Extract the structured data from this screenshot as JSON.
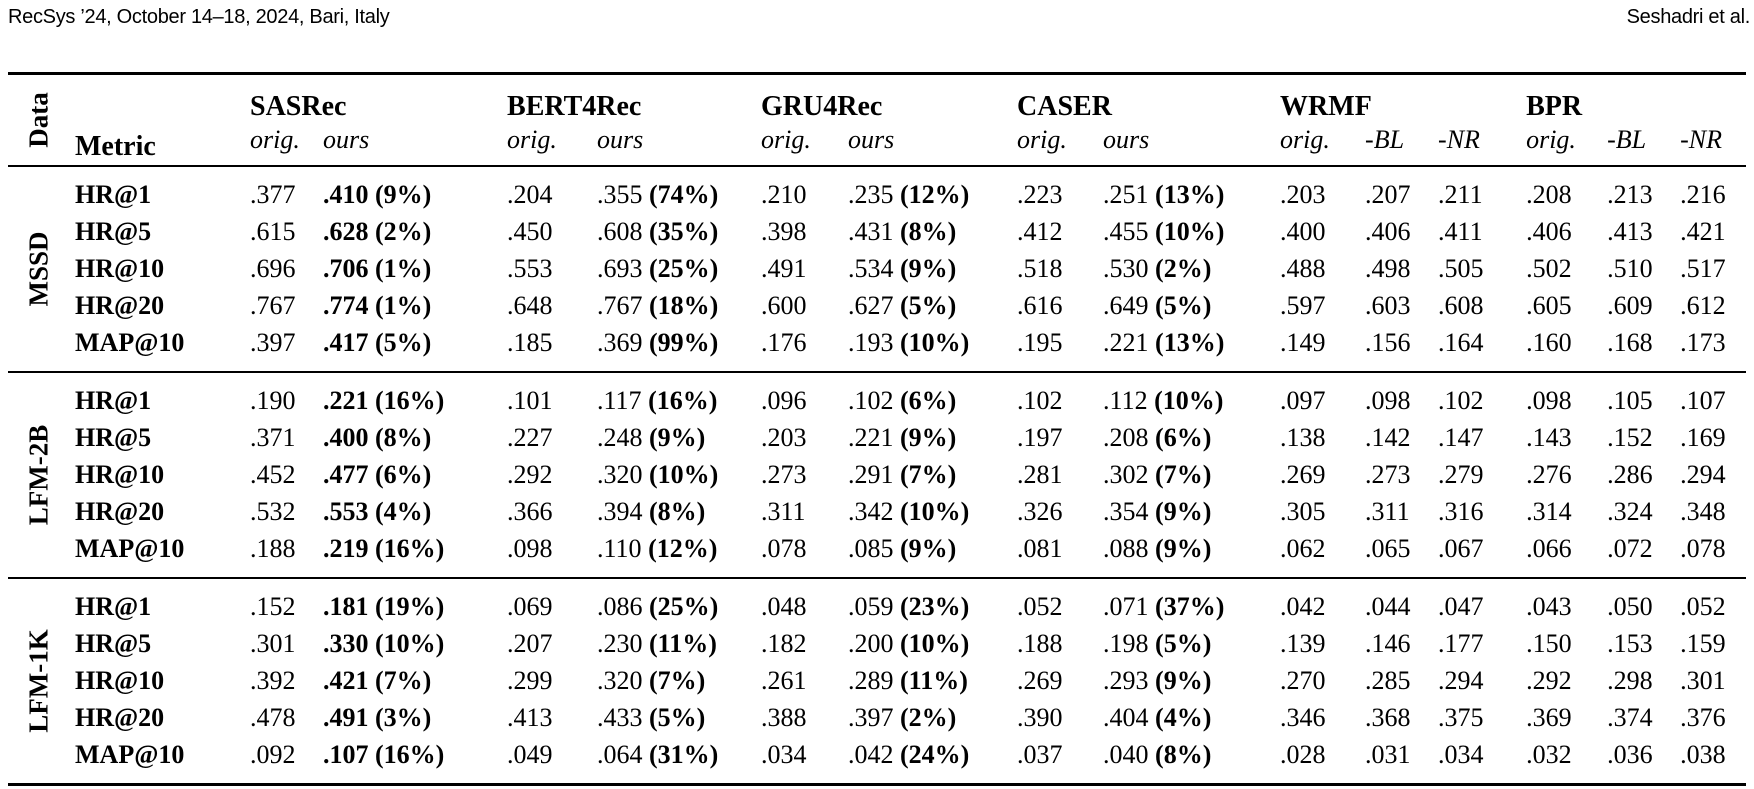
{
  "running_head": {
    "left": "RecSys ’24, October 14–18, 2024, Bari, Italy",
    "right": "Seshadri et al."
  },
  "table": {
    "data_header": "Data",
    "metric_header": "Metric",
    "models": [
      {
        "name": "SASRec",
        "cols": [
          "orig.",
          "ours"
        ]
      },
      {
        "name": "BERT4Rec",
        "cols": [
          "orig.",
          "ours"
        ]
      },
      {
        "name": "GRU4Rec",
        "cols": [
          "orig.",
          "ours"
        ]
      },
      {
        "name": "CASER",
        "cols": [
          "orig.",
          "ours"
        ]
      },
      {
        "name": "WRMF",
        "cols": [
          "orig.",
          "-BL",
          "-NR"
        ]
      },
      {
        "name": "BPR",
        "cols": [
          "orig.",
          "-BL",
          "-NR"
        ]
      }
    ],
    "datasets": [
      {
        "name": "MSSD",
        "rows": [
          {
            "metric": "HR@1",
            "cells": [
              ".377",
              {
                "v": ".410",
                "g": "(9%)",
                "strong": true
              },
              ".204",
              {
                "v": ".355",
                "g": "(74%)"
              },
              ".210",
              {
                "v": ".235",
                "g": "(12%)"
              },
              ".223",
              {
                "v": ".251",
                "g": "(13%)"
              },
              ".203",
              ".207",
              ".211",
              ".208",
              ".213",
              ".216"
            ]
          },
          {
            "metric": "HR@5",
            "cells": [
              ".615",
              {
                "v": ".628",
                "g": "(2%)",
                "strong": true
              },
              ".450",
              {
                "v": ".608",
                "g": "(35%)"
              },
              ".398",
              {
                "v": ".431",
                "g": "(8%)"
              },
              ".412",
              {
                "v": ".455",
                "g": "(10%)"
              },
              ".400",
              ".406",
              ".411",
              ".406",
              ".413",
              ".421"
            ]
          },
          {
            "metric": "HR@10",
            "cells": [
              ".696",
              {
                "v": ".706",
                "g": "(1%)",
                "strong": true
              },
              ".553",
              {
                "v": ".693",
                "g": "(25%)"
              },
              ".491",
              {
                "v": ".534",
                "g": "(9%)"
              },
              ".518",
              {
                "v": ".530",
                "g": "(2%)"
              },
              ".488",
              ".498",
              ".505",
              ".502",
              ".510",
              ".517"
            ]
          },
          {
            "metric": "HR@20",
            "cells": [
              ".767",
              {
                "v": ".774",
                "g": "(1%)",
                "strong": true
              },
              ".648",
              {
                "v": ".767",
                "g": "(18%)"
              },
              ".600",
              {
                "v": ".627",
                "g": "(5%)"
              },
              ".616",
              {
                "v": ".649",
                "g": "(5%)"
              },
              ".597",
              ".603",
              ".608",
              ".605",
              ".609",
              ".612"
            ]
          },
          {
            "metric": "MAP@10",
            "cells": [
              ".397",
              {
                "v": ".417",
                "g": "(5%)",
                "strong": true
              },
              ".185",
              {
                "v": ".369",
                "g": "(99%)"
              },
              ".176",
              {
                "v": ".193",
                "g": "(10%)"
              },
              ".195",
              {
                "v": ".221",
                "g": "(13%)"
              },
              ".149",
              ".156",
              ".164",
              ".160",
              ".168",
              ".173"
            ]
          }
        ]
      },
      {
        "name": "LFM-2B",
        "rows": [
          {
            "metric": "HR@1",
            "cells": [
              ".190",
              {
                "v": ".221",
                "g": "(16%)",
                "strong": true
              },
              ".101",
              {
                "v": ".117",
                "g": "(16%)"
              },
              ".096",
              {
                "v": ".102",
                "g": "(6%)"
              },
              ".102",
              {
                "v": ".112",
                "g": "(10%)"
              },
              ".097",
              ".098",
              ".102",
              ".098",
              ".105",
              ".107"
            ]
          },
          {
            "metric": "HR@5",
            "cells": [
              ".371",
              {
                "v": ".400",
                "g": "(8%)",
                "strong": true
              },
              ".227",
              {
                "v": ".248",
                "g": "(9%)"
              },
              ".203",
              {
                "v": ".221",
                "g": "(9%)"
              },
              ".197",
              {
                "v": ".208",
                "g": "(6%)"
              },
              ".138",
              ".142",
              ".147",
              ".143",
              ".152",
              ".169"
            ]
          },
          {
            "metric": "HR@10",
            "cells": [
              ".452",
              {
                "v": ".477",
                "g": "(6%)",
                "strong": true
              },
              ".292",
              {
                "v": ".320",
                "g": "(10%)"
              },
              ".273",
              {
                "v": ".291",
                "g": "(7%)"
              },
              ".281",
              {
                "v": ".302",
                "g": "(7%)"
              },
              ".269",
              ".273",
              ".279",
              ".276",
              ".286",
              ".294"
            ]
          },
          {
            "metric": "HR@20",
            "cells": [
              ".532",
              {
                "v": ".553",
                "g": "(4%)",
                "strong": true
              },
              ".366",
              {
                "v": ".394",
                "g": "(8%)"
              },
              ".311",
              {
                "v": ".342",
                "g": "(10%)"
              },
              ".326",
              {
                "v": ".354",
                "g": "(9%)"
              },
              ".305",
              ".311",
              ".316",
              ".314",
              ".324",
              ".348"
            ]
          },
          {
            "metric": "MAP@10",
            "cells": [
              ".188",
              {
                "v": ".219",
                "g": "(16%)",
                "strong": true
              },
              ".098",
              {
                "v": ".110",
                "g": "(12%)"
              },
              ".078",
              {
                "v": ".085",
                "g": "(9%)"
              },
              ".081",
              {
                "v": ".088",
                "g": "(9%)"
              },
              ".062",
              ".065",
              ".067",
              ".066",
              ".072",
              ".078"
            ]
          }
        ]
      },
      {
        "name": "LFM-1K",
        "rows": [
          {
            "metric": "HR@1",
            "cells": [
              ".152",
              {
                "v": ".181",
                "g": "(19%)",
                "strong": true
              },
              ".069",
              {
                "v": ".086",
                "g": "(25%)"
              },
              ".048",
              {
                "v": ".059",
                "g": "(23%)"
              },
              ".052",
              {
                "v": ".071",
                "g": "(37%)"
              },
              ".042",
              ".044",
              ".047",
              ".043",
              ".050",
              ".052"
            ]
          },
          {
            "metric": "HR@5",
            "cells": [
              ".301",
              {
                "v": ".330",
                "g": "(10%)",
                "strong": true
              },
              ".207",
              {
                "v": ".230",
                "g": "(11%)"
              },
              ".182",
              {
                "v": ".200",
                "g": "(10%)"
              },
              ".188",
              {
                "v": ".198",
                "g": "(5%)"
              },
              ".139",
              ".146",
              ".177",
              ".150",
              ".153",
              ".159"
            ]
          },
          {
            "metric": "HR@10",
            "cells": [
              ".392",
              {
                "v": ".421",
                "g": "(7%)",
                "strong": true
              },
              ".299",
              {
                "v": ".320",
                "g": "(7%)"
              },
              ".261",
              {
                "v": ".289",
                "g": "(11%)"
              },
              ".269",
              {
                "v": ".293",
                "g": "(9%)"
              },
              ".270",
              ".285",
              ".294",
              ".292",
              ".298",
              ".301"
            ]
          },
          {
            "metric": "HR@20",
            "cells": [
              ".478",
              {
                "v": ".491",
                "g": "(3%)",
                "strong": true
              },
              ".413",
              {
                "v": ".433",
                "g": "(5%)"
              },
              ".388",
              {
                "v": ".397",
                "g": "(2%)"
              },
              ".390",
              {
                "v": ".404",
                "g": "(4%)"
              },
              ".346",
              ".368",
              ".375",
              ".369",
              ".374",
              ".376"
            ]
          },
          {
            "metric": "MAP@10",
            "cells": [
              ".092",
              {
                "v": ".107",
                "g": "(16%)",
                "strong": true
              },
              ".049",
              {
                "v": ".064",
                "g": "(31%)"
              },
              ".034",
              {
                "v": ".042",
                "g": "(24%)"
              },
              ".037",
              {
                "v": ".040",
                "g": "(8%)"
              },
              ".028",
              ".031",
              ".034",
              ".032",
              ".036",
              ".038"
            ]
          }
        ]
      }
    ]
  }
}
